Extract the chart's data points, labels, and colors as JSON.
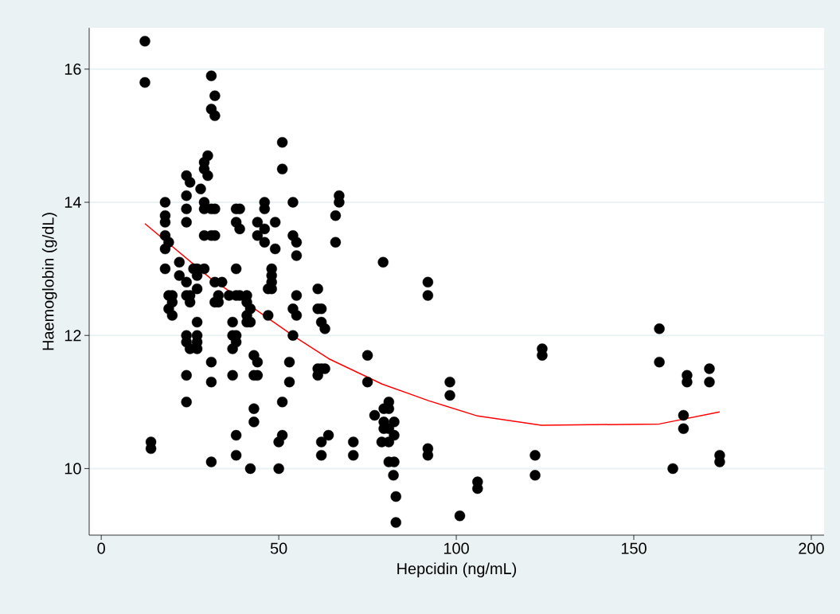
{
  "chart_data": {
    "type": "scatter",
    "xlabel": "Hepcidin (ng/mL)",
    "ylabel": "Haemoglobin (g/dL)",
    "xlim": [
      -3.4,
      203.6
    ],
    "ylim": [
      9.0,
      16.62
    ],
    "xticks": [
      0,
      50,
      100,
      150,
      200
    ],
    "yticks": [
      10,
      12,
      14,
      16
    ],
    "grid": "y",
    "marker": "circle",
    "series": [
      {
        "color": "#000000",
        "x": [
          12.3,
          12.3,
          14,
          14,
          18,
          18,
          18,
          18,
          19,
          18,
          18,
          19,
          20,
          19,
          20,
          20,
          22,
          22,
          24,
          24,
          25,
          24,
          24,
          24,
          24,
          25,
          25,
          24,
          24,
          25,
          24,
          24,
          26,
          27,
          27,
          27,
          27,
          27,
          27,
          27,
          28,
          29,
          29,
          29,
          29,
          30,
          29,
          30,
          29,
          31,
          31,
          32,
          32,
          31,
          32,
          32,
          31,
          32,
          32,
          33,
          33,
          34,
          36,
          37,
          37,
          37,
          37,
          31,
          31,
          31,
          38,
          38,
          38,
          38,
          38,
          39,
          39,
          38,
          38,
          38,
          39,
          41,
          41,
          41,
          41,
          42,
          42,
          42,
          43,
          43,
          44,
          44,
          43,
          43,
          44,
          44,
          46,
          46,
          46,
          46,
          47,
          48,
          48,
          48,
          48,
          47,
          49,
          49,
          50,
          50,
          51,
          51,
          51,
          51,
          53,
          53,
          54,
          54,
          54,
          54,
          55,
          55,
          55,
          55,
          61,
          61,
          62,
          61,
          61,
          62,
          62,
          63,
          63,
          62,
          62,
          64,
          66,
          66,
          67,
          67,
          71,
          71,
          75,
          75,
          79.4,
          92,
          92,
          98.2,
          98.2,
          81,
          79.6,
          81,
          77,
          79.6,
          82.5,
          79.6,
          81,
          82.5,
          79,
          81,
          81,
          82.5,
          82.3,
          83,
          83,
          92,
          92,
          106,
          106,
          101,
          124.2,
          124.2,
          122.2,
          122.2,
          157.2,
          157.2,
          165,
          165,
          171.3,
          171.3,
          164,
          164,
          161,
          174.2,
          174.2
        ],
        "values": [
          16.42,
          15.8,
          10.4,
          10.3,
          14.0,
          13.8,
          13.7,
          13.5,
          13.4,
          13.3,
          13.0,
          12.6,
          12.6,
          12.4,
          12.5,
          12.3,
          13.1,
          12.9,
          14.4,
          14.1,
          14.3,
          13.9,
          13.7,
          12.8,
          12.6,
          12.6,
          12.5,
          12.0,
          11.9,
          11.8,
          11.4,
          11.0,
          13.0,
          13.0,
          12.9,
          12.7,
          12.2,
          12.0,
          11.9,
          11.8,
          14.2,
          14.0,
          13.9,
          13.5,
          13.0,
          14.4,
          14.6,
          14.7,
          14.5,
          15.9,
          15.4,
          15.6,
          15.3,
          13.9,
          13.9,
          13.5,
          13.5,
          12.8,
          12.5,
          12.5,
          12.6,
          12.8,
          12.6,
          12.0,
          12.2,
          11.8,
          11.4,
          11.6,
          11.3,
          10.1,
          10.5,
          10.2,
          12.6,
          13.7,
          13.9,
          13.9,
          13.6,
          13.0,
          12.0,
          11.9,
          12.6,
          12.6,
          12.5,
          12.3,
          12.2,
          12.2,
          12.4,
          10.0,
          11.7,
          11.4,
          11.6,
          11.4,
          10.9,
          10.7,
          13.7,
          13.5,
          13.4,
          13.6,
          13.9,
          14.0,
          12.3,
          12.8,
          13.0,
          12.9,
          12.7,
          12.7,
          13.7,
          13.3,
          10.0,
          10.4,
          10.5,
          11.0,
          14.5,
          14.9,
          11.6,
          11.3,
          14.0,
          13.5,
          12.0,
          12.4,
          13.4,
          13.2,
          12.3,
          12.6,
          12.7,
          12.4,
          12.4,
          11.5,
          11.4,
          11.5,
          12.2,
          12.1,
          11.5,
          10.4,
          10.2,
          10.5,
          13.8,
          13.4,
          14.1,
          14.0,
          10.4,
          10.2,
          11.7,
          11.3,
          13.1,
          12.8,
          12.6,
          11.3,
          11.1,
          11.0,
          10.9,
          10.9,
          10.8,
          10.7,
          10.7,
          10.6,
          10.6,
          10.5,
          10.4,
          10.4,
          10.1,
          10.1,
          9.9,
          9.58,
          9.19,
          10.3,
          10.2,
          9.8,
          9.7,
          9.29,
          11.8,
          11.7,
          10.2,
          9.9,
          12.1,
          11.6,
          11.4,
          11.3,
          11.5,
          11.3,
          10.8,
          10.6,
          10.0,
          10.2,
          10.1
        ]
      },
      {
        "type": "line",
        "marker": "none",
        "color": "#ff0000",
        "x": [
          12.3,
          31.4,
          34.3,
          54.5,
          64.1,
          79.1,
          92.2,
          106,
          124,
          157.2,
          174.2
        ],
        "values": [
          13.68,
          12.83,
          12.73,
          11.98,
          11.65,
          11.27,
          11.02,
          10.79,
          10.65,
          10.67,
          10.85
        ]
      }
    ]
  }
}
